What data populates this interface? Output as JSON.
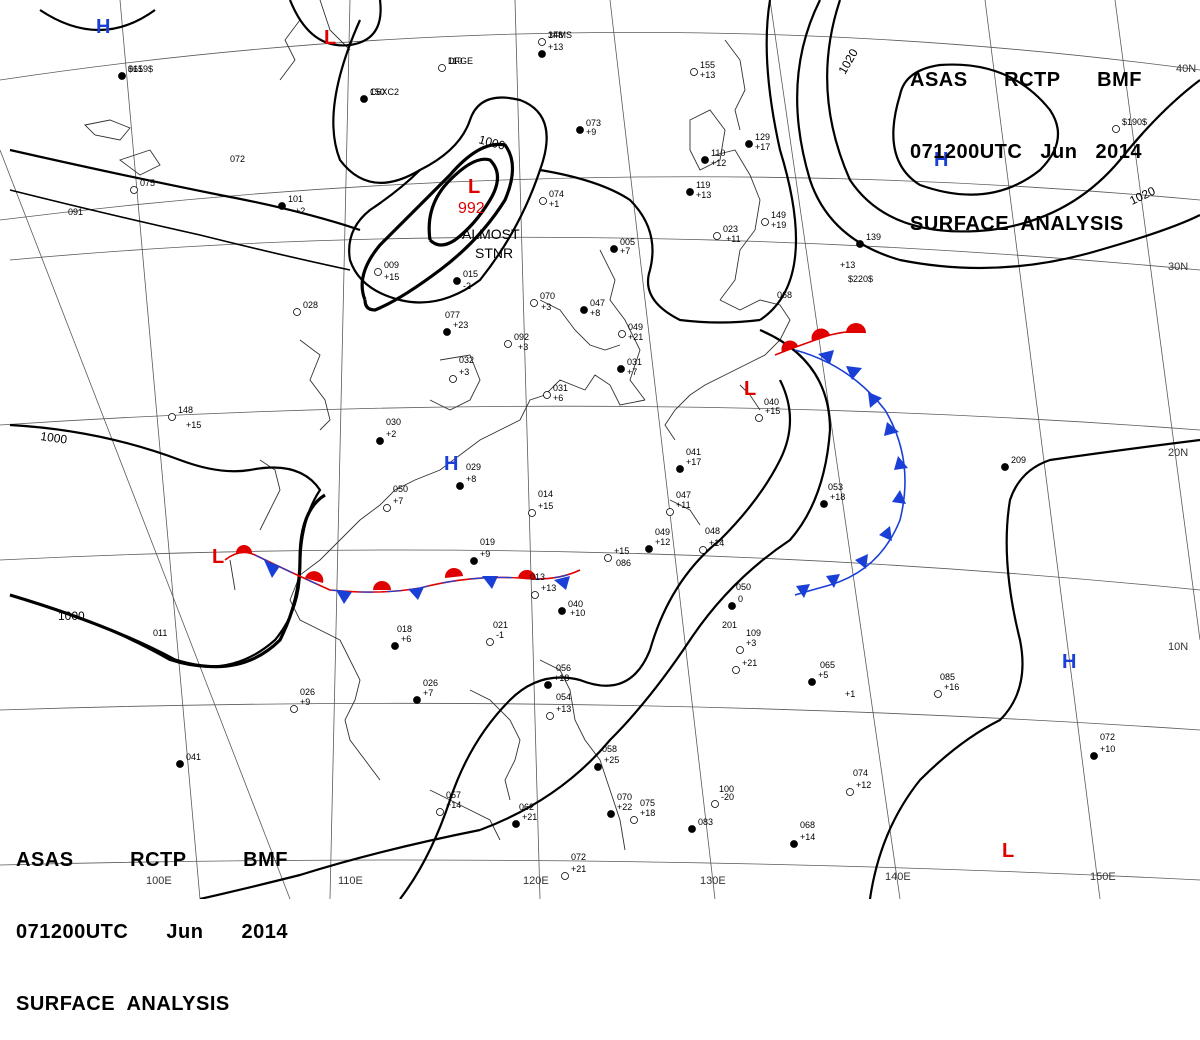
{
  "header": {
    "line1": [
      "ASAS",
      "RCTP",
      "BMF"
    ],
    "line2": [
      "071200UTC",
      "Jun",
      "2014"
    ],
    "line3": "SURFACE  ANALYSIS"
  },
  "pressure_centers": [
    {
      "type": "H",
      "color": "#1a3fd6"
    },
    {
      "type": "L",
      "color": "#e00000"
    },
    {
      "type": "L",
      "color": "#e00000",
      "value": "992"
    },
    {
      "type": "H",
      "color": "#1a3fd6"
    },
    {
      "type": "L",
      "color": "#e00000"
    },
    {
      "type": "H",
      "color": "#1a3fd6"
    },
    {
      "type": "L",
      "color": "#e00000"
    },
    {
      "type": "H",
      "color": "#1a3fd6"
    },
    {
      "type": "L",
      "color": "#e00000"
    }
  ],
  "isobar_labels": [
    "1000",
    "1000",
    "1000",
    "1020",
    "1020"
  ],
  "annotation": {
    "line1": "ALMOST",
    "line2": "STNR"
  },
  "lon_labels": [
    "100E",
    "110E",
    "120E",
    "130E",
    "140E",
    "150E"
  ],
  "lat_labels": [
    "40N",
    "30N",
    "20N",
    "10N"
  ],
  "stations": [
    "061",
    "150",
    "110",
    "148",
    "+13",
    "072",
    "075",
    "091",
    "101",
    "+2",
    "009",
    "+15",
    "015",
    "-2",
    "028",
    "077",
    "+23",
    "032",
    "+3",
    "030",
    "+2",
    "050",
    "+7",
    "029",
    "+8",
    "014",
    "+15",
    "019",
    "+9",
    "013",
    "+13",
    "018",
    "+6",
    "021",
    "-1",
    "026",
    "+7",
    "026",
    "+9",
    "011",
    "041",
    "057",
    "+14",
    "062",
    "+21",
    "072",
    "+21",
    "056",
    "+18",
    "054",
    "+13",
    "058",
    "+25",
    "075",
    "+18",
    "070",
    "+22",
    "100",
    "-20",
    "068",
    "+14",
    "074",
    "+12",
    "072",
    "+10",
    "085",
    "+16",
    "065",
    "+5",
    "109",
    "+3",
    "050",
    "0",
    "048",
    "+14",
    "049",
    "+12",
    "047",
    "+11",
    "041",
    "+17",
    "040",
    "+15",
    "053",
    "+18",
    "068",
    "+15",
    "086",
    "040",
    "+10",
    "031",
    "+6",
    "031",
    "+7",
    "049",
    "+21",
    "047",
    "+8",
    "070",
    "+3",
    "005",
    "+7",
    "074",
    "+1",
    "073",
    "+9",
    "092",
    "+3",
    "119",
    "+13",
    "023",
    "+11",
    "110",
    "+12",
    "149",
    "+19",
    "129",
    "+17",
    "155",
    "+13",
    "139",
    "+13",
    "148",
    "+15",
    "209",
    "201",
    "+21",
    "+1",
    "083",
    "$220$",
    "$190$",
    "$159$",
    "C6XC2",
    "DFGE",
    "3FMS"
  ]
}
